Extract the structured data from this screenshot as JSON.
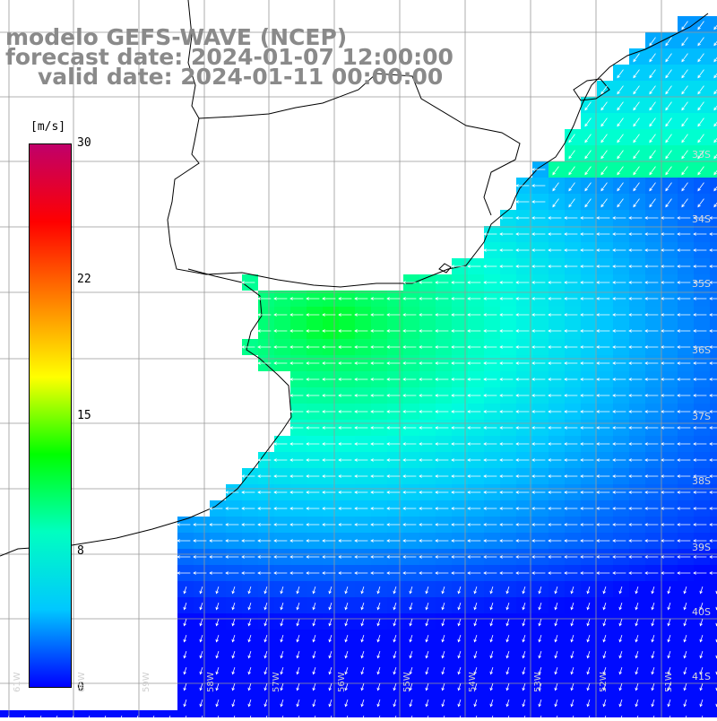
{
  "title": {
    "line1": "modelo GEFS-WAVE (NCEP)",
    "line2": "forecast date: 2024-01-07 12:00:00",
    "line3": "valid date: 2024-01-11 00:00:00"
  },
  "colorbar": {
    "unit": "[m/s]",
    "ticks": [
      "30",
      "22",
      "15",
      "8",
      "0"
    ],
    "min": 0,
    "max": 30,
    "stops": [
      "#0000ff",
      "#00c8ff",
      "#00ffc0",
      "#00ff00",
      "#ffff00",
      "#ff8000",
      "#ff0000",
      "#c0006a"
    ]
  },
  "grid": {
    "lat_labels": [
      "33S",
      "34S",
      "35S",
      "36S",
      "37S",
      "38S",
      "39S",
      "40S",
      "41S"
    ],
    "lon_labels": [
      "61W",
      "60W",
      "59W",
      "58W",
      "57W",
      "56W",
      "55W",
      "54W",
      "53W",
      "52W",
      "51W"
    ]
  },
  "colors": {
    "land": "#ffffff",
    "coastline": "#000000",
    "grid": "#999999",
    "arrows": "#ffffff",
    "title": "#8a8a8a"
  }
}
